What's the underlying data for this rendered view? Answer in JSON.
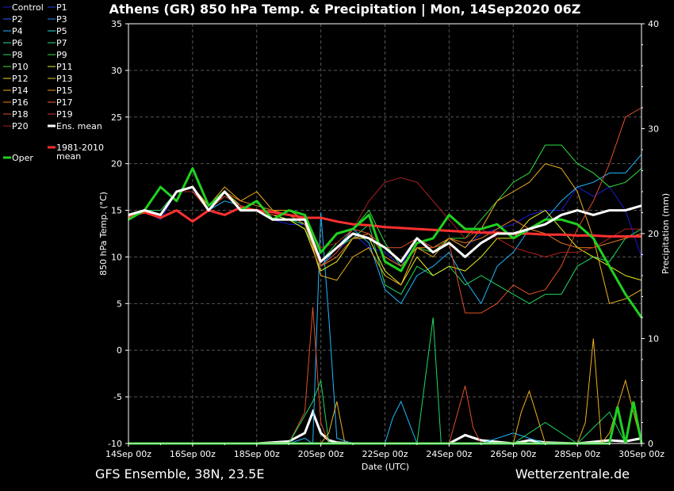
{
  "chart_data": {
    "type": "line",
    "title": "Athens  (GR)  850 hPa Temp. & Precipitation | Mon, 14Sep2020 06Z",
    "xlabel": "Date (UTC)",
    "ylabel": "850 hPa Temp. (°C)",
    "y2label": "Precipitation (mm)",
    "ylim": [
      -10,
      35
    ],
    "y2lim": [
      0,
      40
    ],
    "yticks": [
      "35",
      "30",
      "25",
      "20",
      "15",
      "10",
      "5",
      "0",
      "-5",
      "-10"
    ],
    "y2ticks": [
      "40",
      "30",
      "20",
      "10",
      "0"
    ],
    "xticks": [
      "14Sep 00z",
      "16Sep 00z",
      "18Sep 00z",
      "20Sep 00z",
      "22Sep 00z",
      "24Sep 00z",
      "26Sep 00z",
      "28Sep 00z",
      "30Sep 00z"
    ],
    "x_start": "14Sep 00z",
    "x_end": "30Sep 00z",
    "grid": true,
    "legend_position": "left",
    "footer_left": "GFS Ensemble, 38N, 23.5E",
    "footer_right": "Wetterzentrale.de",
    "legend": [
      {
        "label": "Control",
        "color": "#1c1cd8"
      },
      {
        "label": "P1",
        "color": "#2040f0"
      },
      {
        "label": "P2",
        "color": "#2a60ff"
      },
      {
        "label": "P3",
        "color": "#2090ff"
      },
      {
        "label": "P4",
        "color": "#20b8ff"
      },
      {
        "label": "P5",
        "color": "#20e0e0"
      },
      {
        "label": "P6",
        "color": "#20e0a8"
      },
      {
        "label": "P7",
        "color": "#20e080"
      },
      {
        "label": "P8",
        "color": "#20d860"
      },
      {
        "label": "P9",
        "color": "#30e040"
      },
      {
        "label": "P10",
        "color": "#40e020"
      },
      {
        "label": "P11",
        "color": "#e8f020"
      },
      {
        "label": "P12",
        "color": "#f0e020"
      },
      {
        "label": "P13",
        "color": "#f0c820"
      },
      {
        "label": "P14",
        "color": "#f0b020"
      },
      {
        "label": "P15",
        "color": "#f09820"
      },
      {
        "label": "P16",
        "color": "#f08020"
      },
      {
        "label": "P17",
        "color": "#f06820"
      },
      {
        "label": "P18",
        "color": "#e05028"
      },
      {
        "label": "P19",
        "color": "#d03828"
      },
      {
        "label": "P20",
        "color": "#b02020"
      },
      {
        "label": "Ens. mean",
        "color": "#ffffff"
      },
      {
        "label": "Oper",
        "color": "#20d020"
      },
      {
        "label": "1981-2010 mean",
        "color": "#ff3030"
      }
    ],
    "series_time_days_step": 0.25,
    "series": [
      {
        "name": "Oper",
        "color": "#20d020",
        "x_days": [
          0,
          0.5,
          1,
          1.5,
          2,
          2.5,
          3,
          3.5,
          4,
          4.5,
          5,
          5.5,
          6,
          6.5,
          7,
          7.5,
          8,
          8.5,
          9,
          9.5,
          10,
          10.5,
          11,
          11.5,
          12,
          12.5,
          13,
          13.5,
          14,
          14.5,
          15,
          15.5,
          16
        ],
        "values": [
          14,
          15,
          17.5,
          16,
          19.5,
          15.5,
          17,
          15,
          16,
          14,
          15,
          14.5,
          10.5,
          12.5,
          13,
          14.5,
          9.5,
          8.5,
          11.5,
          12,
          14.5,
          13,
          13,
          13.5,
          12,
          13,
          14,
          14,
          13.5,
          12,
          9,
          6,
          3.5
        ]
      },
      {
        "name": "Ens. mean",
        "color": "#ffffff",
        "x_days": [
          0,
          0.5,
          1,
          1.5,
          2,
          2.5,
          3,
          3.5,
          4,
          4.5,
          5,
          5.5,
          6,
          6.5,
          7,
          7.5,
          8,
          8.5,
          9,
          9.5,
          10,
          10.5,
          11,
          11.5,
          12,
          12.5,
          13,
          13.5,
          14,
          14.5,
          15,
          15.5,
          16
        ],
        "values": [
          14.5,
          15,
          14.5,
          17,
          17.5,
          15,
          17,
          15,
          15,
          14,
          14,
          14,
          9.5,
          11,
          12.5,
          12,
          11,
          9.5,
          12,
          10.5,
          11.5,
          10,
          11.5,
          12.5,
          12.5,
          13,
          13.5,
          14.5,
          15,
          14.5,
          15,
          15,
          15.5
        ]
      },
      {
        "name": "1981-2010 mean",
        "color": "#ff3030",
        "x_days": [
          0,
          0.5,
          1,
          1.5,
          2,
          2.5,
          3,
          3.5,
          4,
          4.5,
          5,
          5.5,
          6,
          6.5,
          7,
          7.5,
          8,
          8.5,
          9,
          9.5,
          10,
          10.5,
          11,
          11.5,
          12,
          12.5,
          13,
          13.5,
          14,
          14.5,
          15,
          15.5,
          16
        ],
        "values": [
          14.3,
          14.8,
          14.2,
          15,
          13.8,
          15,
          14.5,
          15.3,
          15,
          14.8,
          14.5,
          14.2,
          14.2,
          13.8,
          13.5,
          13.4,
          13.2,
          13.1,
          13,
          12.9,
          12.8,
          12.7,
          12.6,
          12.6,
          12.5,
          12.5,
          12.4,
          12.4,
          12.3,
          12.3,
          12.2,
          12.2,
          12.2
        ]
      },
      {
        "name": "Control",
        "color": "#1c1cd8",
        "x_days": [
          0,
          0.5,
          1,
          1.5,
          2,
          2.5,
          3,
          3.5,
          4,
          4.5,
          5,
          5.5,
          6,
          6.5,
          7,
          7.5,
          8,
          8.5,
          9,
          9.5,
          10,
          10.5,
          11,
          11.5,
          12,
          12.5,
          13,
          13.5,
          14,
          14.5,
          15,
          15.5,
          16
        ],
        "values": [
          14.5,
          15,
          14,
          17,
          17,
          15.5,
          17,
          15,
          15,
          14,
          13.5,
          13.5,
          9,
          10.5,
          12.5,
          11,
          10.5,
          9,
          12,
          11,
          12,
          11,
          12.5,
          13,
          13.5,
          14.5,
          15,
          15,
          17.5,
          16.5,
          17.5,
          15,
          10
        ]
      },
      {
        "name": "P4",
        "color": "#20b8ff",
        "x_days": [
          0,
          0.5,
          1,
          1.5,
          2,
          2.5,
          3,
          3.5,
          4,
          4.5,
          5,
          5.5,
          6,
          6.5,
          7,
          7.5,
          8,
          8.5,
          9,
          9.5,
          10,
          10.5,
          11,
          11.5,
          12,
          12.5,
          13,
          13.5,
          14,
          14.5,
          15,
          15.5,
          16
        ],
        "values": [
          14.5,
          15,
          14.5,
          17,
          17.5,
          15,
          16,
          15.5,
          15,
          14.5,
          14,
          13.5,
          9,
          11,
          13,
          11.5,
          6.5,
          5,
          8,
          9,
          10.5,
          7.5,
          5,
          9,
          10.5,
          13,
          14,
          16,
          17.5,
          18,
          19,
          19,
          21
        ]
      },
      {
        "name": "P8",
        "color": "#20d860",
        "x_days": [
          0,
          0.5,
          1,
          1.5,
          2,
          2.5,
          3,
          3.5,
          4,
          4.5,
          5,
          5.5,
          6,
          6.5,
          7,
          7.5,
          8,
          8.5,
          9,
          9.5,
          10,
          10.5,
          11,
          11.5,
          12,
          12.5,
          13,
          13.5,
          14,
          14.5,
          15,
          15.5,
          16
        ],
        "values": [
          14.5,
          15,
          15,
          17,
          17,
          15,
          16.5,
          15.5,
          15,
          14.5,
          14,
          13.5,
          9.5,
          11,
          12,
          13.5,
          7,
          6,
          9,
          8,
          9,
          7,
          8,
          7,
          6,
          5,
          6,
          6,
          9,
          10,
          9.5,
          12,
          13
        ]
      },
      {
        "name": "P9",
        "color": "#30e040",
        "x_days": [
          0,
          0.5,
          1,
          1.5,
          2,
          2.5,
          3,
          3.5,
          4,
          4.5,
          5,
          5.5,
          6,
          6.5,
          7,
          7.5,
          8,
          8.5,
          9,
          9.5,
          10,
          10.5,
          11,
          11.5,
          12,
          12.5,
          13,
          13.5,
          14,
          14.5,
          15,
          15.5,
          16
        ],
        "values": [
          14.5,
          15,
          14.5,
          17,
          17.5,
          15.5,
          16.5,
          15.5,
          15,
          14.5,
          14,
          13,
          9.5,
          11.5,
          13,
          15,
          11.5,
          9,
          11,
          10.5,
          12,
          12,
          14,
          16,
          18,
          19,
          22,
          22,
          20,
          19,
          17.5,
          18,
          19.5
        ]
      },
      {
        "name": "P11",
        "color": "#e8f020",
        "x_days": [
          0,
          0.5,
          1,
          1.5,
          2,
          2.5,
          3,
          3.5,
          4,
          4.5,
          5,
          5.5,
          6,
          6.5,
          7,
          7.5,
          8,
          8.5,
          9,
          9.5,
          10,
          10.5,
          11,
          11.5,
          12,
          12.5,
          13,
          13.5,
          14,
          14.5,
          15,
          15.5,
          16
        ],
        "values": [
          14.5,
          15,
          14.5,
          17,
          17,
          15,
          17,
          15.5,
          15,
          14.5,
          14,
          13,
          8.5,
          9.5,
          12,
          12,
          8.5,
          7,
          10,
          8,
          9,
          8.5,
          10,
          12,
          12,
          14,
          15,
          13,
          11,
          10,
          9,
          8,
          7.5
        ]
      },
      {
        "name": "P14",
        "color": "#f0b020",
        "x_days": [
          0,
          0.5,
          1,
          1.5,
          2,
          2.5,
          3,
          3.5,
          4,
          4.5,
          5,
          5.5,
          6,
          6.5,
          7,
          7.5,
          8,
          8.5,
          9,
          9.5,
          10,
          10.5,
          11,
          11.5,
          12,
          12.5,
          13,
          13.5,
          14,
          14.5,
          15,
          15.5,
          16
        ],
        "values": [
          14.5,
          15,
          14.5,
          17,
          17.5,
          15.5,
          17.5,
          16,
          17,
          15,
          15,
          14,
          8,
          7.5,
          10,
          11,
          8,
          7,
          11,
          10,
          12,
          11,
          13,
          16,
          17,
          18,
          20,
          19.5,
          17,
          12,
          5,
          5.5,
          6.5
        ]
      },
      {
        "name": "P16",
        "color": "#f08020",
        "x_days": [
          0,
          0.5,
          1,
          1.5,
          2,
          2.5,
          3,
          3.5,
          4,
          4.5,
          5,
          5.5,
          6,
          6.5,
          7,
          7.5,
          8,
          8.5,
          9,
          9.5,
          10,
          10.5,
          11,
          11.5,
          12,
          12.5,
          13,
          13.5,
          14,
          14.5,
          15,
          15.5,
          16
        ],
        "values": [
          14.5,
          15,
          14.5,
          17,
          17,
          15,
          17,
          16,
          15.5,
          15,
          14.5,
          13.5,
          9,
          10,
          12,
          12.5,
          10,
          9,
          11,
          11,
          12,
          11.5,
          12,
          13,
          14,
          13,
          12.5,
          11.5,
          11,
          11,
          11.5,
          12,
          12.5
        ]
      },
      {
        "name": "P18",
        "color": "#e05028",
        "x_days": [
          0,
          0.5,
          1,
          1.5,
          2,
          2.5,
          3,
          3.5,
          4,
          4.5,
          5,
          5.5,
          6,
          6.5,
          7,
          7.5,
          8,
          8.5,
          9,
          9.5,
          10,
          10.5,
          11,
          11.5,
          12,
          12.5,
          13,
          13.5,
          14,
          14.5,
          15,
          15.5,
          16
        ],
        "values": [
          14.5,
          15,
          14.5,
          17,
          17,
          15.5,
          16.5,
          15.5,
          15,
          14.5,
          14.5,
          14,
          9,
          10.5,
          13,
          12.5,
          11,
          11,
          12,
          11,
          11.5,
          4,
          4,
          5,
          7,
          6,
          6.5,
          9,
          13,
          16,
          20,
          25,
          26
        ]
      },
      {
        "name": "P20",
        "color": "#b02020",
        "x_days": [
          0,
          0.5,
          1,
          1.5,
          2,
          2.5,
          3,
          3.5,
          4,
          4.5,
          5,
          5.5,
          6,
          6.5,
          7,
          7.5,
          8,
          8.5,
          9,
          9.5,
          10,
          10.5,
          11,
          11.5,
          12,
          12.5,
          13,
          13.5,
          14,
          14.5,
          15,
          15.5,
          16
        ],
        "values": [
          14.5,
          15,
          14.5,
          17,
          17,
          15,
          16.5,
          15.5,
          15,
          14.5,
          14.5,
          14,
          11,
          11.5,
          13,
          16,
          18,
          18.5,
          18,
          16,
          14,
          12,
          13,
          12,
          11,
          10.5,
          10,
          10.5,
          10.5,
          11,
          12,
          13,
          13
        ]
      }
    ],
    "precip_series": [
      {
        "name": "Ens. mean",
        "color": "#ffffff",
        "x_days": [
          0,
          1,
          2,
          3,
          4,
          5,
          5.5,
          5.75,
          6,
          6.25,
          6.5,
          7,
          8,
          9,
          10,
          10.5,
          11,
          12,
          12.5,
          13,
          14,
          15,
          15.5,
          16
        ],
        "values": [
          0,
          0,
          0,
          0,
          0,
          0.2,
          1,
          3,
          1,
          0.3,
          0.1,
          0,
          0,
          0,
          0,
          0.8,
          0.3,
          0,
          0.3,
          0.1,
          0,
          0.3,
          0.2,
          0.5
        ]
      },
      {
        "name": "P4",
        "color": "#20b8ff",
        "x_days": [
          0,
          4,
          5,
          5.5,
          5.75,
          6,
          6.25,
          6.5,
          7,
          8,
          8.25,
          8.5,
          9,
          10,
          11,
          12,
          13,
          14,
          15,
          16
        ],
        "values": [
          0,
          0,
          0,
          0.5,
          0,
          22,
          12,
          0.5,
          0,
          0,
          2.5,
          4,
          0,
          0,
          0,
          1,
          0,
          0,
          0,
          0
        ]
      },
      {
        "name": "P18",
        "color": "#e05028",
        "x_days": [
          0,
          5,
          5.5,
          5.75,
          6,
          6.25,
          7,
          10,
          10.5,
          10.75,
          11,
          16
        ],
        "values": [
          0,
          0,
          3,
          13,
          2,
          0,
          0,
          0,
          5.5,
          1.5,
          0,
          0
        ]
      },
      {
        "name": "P8",
        "color": "#20d860",
        "x_days": [
          0,
          5,
          5.75,
          6,
          6.25,
          7,
          9,
          9.5,
          9.75,
          10,
          12,
          13,
          14,
          15,
          15.5,
          16
        ],
        "values": [
          0,
          0,
          4,
          6,
          0,
          0,
          0,
          12,
          0,
          0,
          0,
          2,
          0,
          3,
          0,
          0
        ]
      },
      {
        "name": "P14",
        "color": "#f0b020",
        "x_days": [
          0,
          6,
          6.25,
          6.5,
          6.75,
          7,
          12,
          12.25,
          12.5,
          13,
          14,
          14.25,
          14.5,
          14.75,
          15,
          15.5,
          16
        ],
        "values": [
          0,
          0,
          1,
          4,
          0,
          0,
          0,
          3,
          5,
          0,
          0,
          2,
          10,
          0,
          1,
          6,
          0
        ]
      },
      {
        "name": "Oper",
        "color": "#20d020",
        "x_days": [
          0,
          14,
          15,
          15.25,
          15.5,
          15.75,
          16
        ],
        "values": [
          0,
          0,
          0,
          3.5,
          0,
          4,
          0
        ]
      }
    ]
  }
}
